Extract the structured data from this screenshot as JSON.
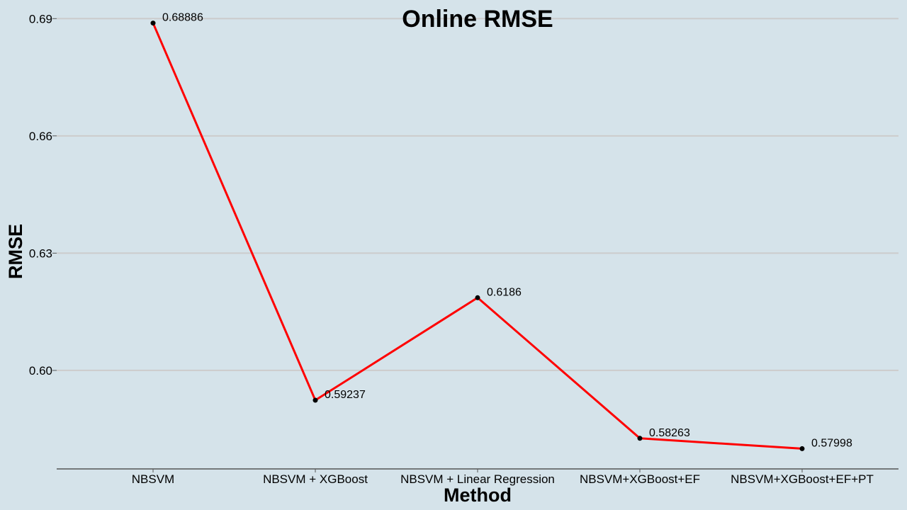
{
  "colors": {
    "background": "#d5e3ea",
    "line": "#ff0000",
    "point": "#000000",
    "grid": "#cccccc",
    "axis": "#555555",
    "text": "#000000"
  },
  "chart_data": {
    "type": "line",
    "title": "Online RMSE",
    "xlabel": "Method",
    "ylabel": "RMSE",
    "categories": [
      "NBSVM",
      "NBSVM + XGBoost",
      "NBSVM + Linear Regression",
      "NBSVM+XGBoost+EF",
      "NBSVM+XGBoost+EF+PT"
    ],
    "series": [
      {
        "values": [
          0.68886,
          0.59237,
          0.6186,
          0.58263,
          0.57998
        ],
        "data_labels": [
          "0.68886",
          "0.59237",
          "0.6186",
          "0.58263",
          "0.57998"
        ]
      }
    ],
    "yticks": [
      0.6,
      0.63,
      0.66,
      0.69
    ],
    "ytick_labels": [
      "0.60",
      "0.63",
      "0.66",
      "0.69"
    ],
    "ylim": [
      0.5748,
      0.6915
    ],
    "grid": "horizontal",
    "legend": "none"
  }
}
